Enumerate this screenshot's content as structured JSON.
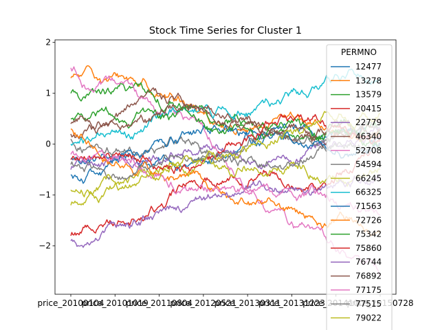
{
  "chart_data": {
    "type": "line",
    "title": "Stock Time Series for Cluster 1",
    "xlabel": "",
    "ylabel": "",
    "x_tick_labels": [
      "price_20100104",
      "price_20101019",
      "price_20110804",
      "price_20120521",
      "price_20130311",
      "price_20131223",
      "price_20141009",
      "price_20150728"
    ],
    "y_ticks": [
      -2,
      -1,
      0,
      1,
      2
    ],
    "ylim": [
      -2.95,
      2.05
    ],
    "grid": false,
    "legend": {
      "title": "PERMNO",
      "placement": "right"
    },
    "series": [
      {
        "name": "12477",
        "color": "#1f77b4",
        "start": -0.3,
        "end": 0.1
      },
      {
        "name": "13278",
        "color": "#ff7f0e",
        "start": 1.3,
        "end": 0.3
      },
      {
        "name": "13579",
        "color": "#2ca02c",
        "start": 1.0,
        "end": 0.2
      },
      {
        "name": "20415",
        "color": "#d62728",
        "start": -1.8,
        "end": 0.1
      },
      {
        "name": "22779",
        "color": "#9467bd",
        "start": -0.5,
        "end": 0.3
      },
      {
        "name": "46340",
        "color": "#8c564b",
        "start": 0.2,
        "end": 0.5
      },
      {
        "name": "52708",
        "color": "#e377c2",
        "start": 1.5,
        "end": -2.6
      },
      {
        "name": "54594",
        "color": "#7f7f7f",
        "start": 0.1,
        "end": 0.4
      },
      {
        "name": "66245",
        "color": "#bcbd22",
        "start": -0.9,
        "end": -0.5
      },
      {
        "name": "66325",
        "color": "#17becf",
        "start": 0.0,
        "end": 1.3
      },
      {
        "name": "71563",
        "color": "#1f77b4",
        "start": -0.6,
        "end": 0.0
      },
      {
        "name": "72726",
        "color": "#ff7f0e",
        "start": 0.3,
        "end": -1.7
      },
      {
        "name": "75342",
        "color": "#2ca02c",
        "start": 0.5,
        "end": -0.1
      },
      {
        "name": "75860",
        "color": "#d62728",
        "start": -0.3,
        "end": 0.2
      },
      {
        "name": "76744",
        "color": "#9467bd",
        "start": -1.9,
        "end": -0.6
      },
      {
        "name": "76892",
        "color": "#8c564b",
        "start": 0.4,
        "end": 0.3
      },
      {
        "name": "77175",
        "color": "#e377c2",
        "start": -0.2,
        "end": -1.4
      },
      {
        "name": "77515",
        "color": "#7f7f7f",
        "start": -0.4,
        "end": 0.0
      },
      {
        "name": "79022",
        "color": "#bcbd22",
        "start": -1.2,
        "end": 0.6
      }
    ]
  }
}
